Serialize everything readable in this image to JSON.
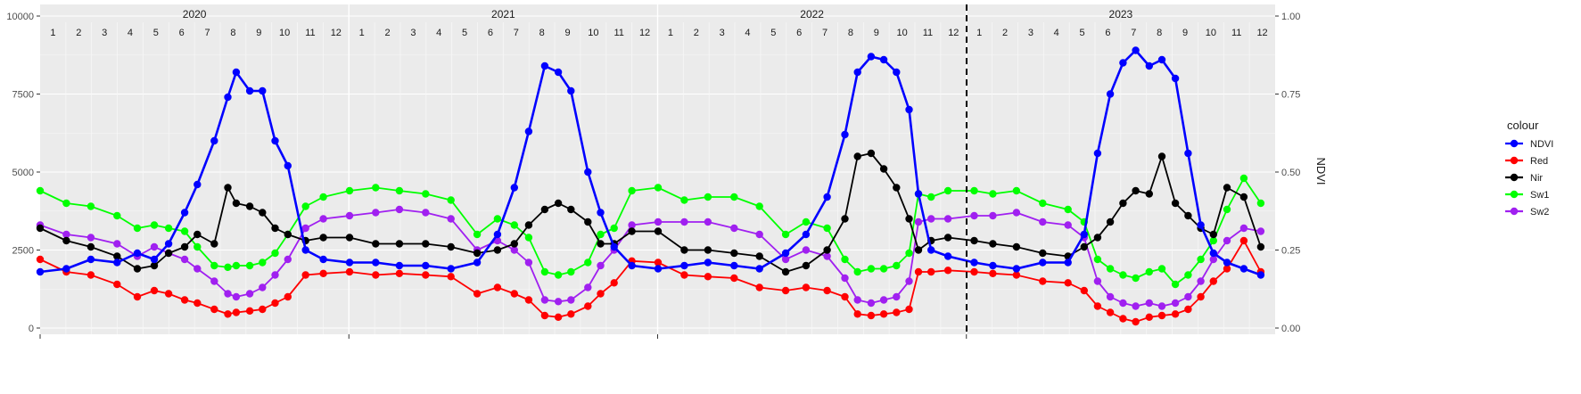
{
  "chart_data": {
    "type": "line",
    "title": "",
    "xlabel": "",
    "ylabel_left": "",
    "ylabel_right": "NDVI",
    "ylim_left": [
      0,
      10000
    ],
    "ylim_right": [
      0,
      1
    ],
    "left_ticks": [
      "0",
      "2500",
      "5000",
      "7500",
      "10000"
    ],
    "right_ticks": [
      "0.00",
      "0.25",
      "0.50",
      "0.75",
      "1.00"
    ],
    "grid": true,
    "years": [
      "2020",
      "2021",
      "2022",
      "2023"
    ],
    "month_labels": [
      "1",
      "2",
      "3",
      "4",
      "5",
      "6",
      "7",
      "8",
      "9",
      "10",
      "11",
      "12"
    ],
    "x_start": "2020-01-01",
    "reference_line_date": "2023-01-01",
    "legend": {
      "title": "colour",
      "position": "right",
      "entries": [
        {
          "label": "NDVI",
          "color": "#0000ff"
        },
        {
          "label": "Red",
          "color": "#ff0000"
        },
        {
          "label": "Nir",
          "color": "#000000"
        },
        {
          "label": "Sw1",
          "color": "#00ff00"
        },
        {
          "label": "Sw2",
          "color": "#a020f0"
        }
      ]
    },
    "series": [
      {
        "name": "NDVI",
        "color": "#0000ff",
        "axis": "right",
        "x": [
          "2020-01-01",
          "2020-02-01",
          "2020-03-01",
          "2020-04-01",
          "2020-04-25",
          "2020-05-15",
          "2020-06-01",
          "2020-06-20",
          "2020-07-05",
          "2020-07-25",
          "2020-08-10",
          "2020-08-20",
          "2020-09-05",
          "2020-09-20",
          "2020-10-05",
          "2020-10-20",
          "2020-11-10",
          "2020-12-01",
          "2021-01-01",
          "2021-02-01",
          "2021-03-01",
          "2021-04-01",
          "2021-05-01",
          "2021-06-01",
          "2021-06-25",
          "2021-07-15",
          "2021-08-01",
          "2021-08-20",
          "2021-09-05",
          "2021-09-20",
          "2021-10-10",
          "2021-10-25",
          "2021-11-10",
          "2021-12-01",
          "2022-01-01",
          "2022-02-01",
          "2022-03-01",
          "2022-04-01",
          "2022-05-01",
          "2022-06-01",
          "2022-06-25",
          "2022-07-20",
          "2022-08-10",
          "2022-08-25",
          "2022-09-10",
          "2022-09-25",
          "2022-10-10",
          "2022-10-25",
          "2022-11-05",
          "2022-11-20",
          "2022-12-10",
          "2023-01-10",
          "2023-02-01",
          "2023-03-01",
          "2023-04-01",
          "2023-05-01",
          "2023-05-20",
          "2023-06-05",
          "2023-06-20",
          "2023-07-05",
          "2023-07-20",
          "2023-08-05",
          "2023-08-20",
          "2023-09-05",
          "2023-09-20",
          "2023-10-05",
          "2023-10-20",
          "2023-11-05",
          "2023-11-25",
          "2023-12-15"
        ],
        "y": [
          0.18,
          0.19,
          0.22,
          0.21,
          0.24,
          0.22,
          0.27,
          0.37,
          0.46,
          0.6,
          0.74,
          0.82,
          0.76,
          0.76,
          0.6,
          0.52,
          0.25,
          0.22,
          0.21,
          0.21,
          0.2,
          0.2,
          0.19,
          0.21,
          0.3,
          0.45,
          0.63,
          0.84,
          0.82,
          0.76,
          0.5,
          0.37,
          0.26,
          0.2,
          0.19,
          0.2,
          0.21,
          0.2,
          0.19,
          0.24,
          0.3,
          0.42,
          0.62,
          0.82,
          0.87,
          0.86,
          0.82,
          0.7,
          0.43,
          0.25,
          0.23,
          0.21,
          0.2,
          0.19,
          0.21,
          0.21,
          0.3,
          0.56,
          0.75,
          0.85,
          0.89,
          0.84,
          0.86,
          0.8,
          0.56,
          0.33,
          0.24,
          0.21,
          0.19,
          0.17
        ]
      },
      {
        "name": "Red",
        "color": "#ff0000",
        "axis": "left",
        "x": [
          "2020-01-01",
          "2020-02-01",
          "2020-03-01",
          "2020-04-01",
          "2020-04-25",
          "2020-05-15",
          "2020-06-01",
          "2020-06-20",
          "2020-07-05",
          "2020-07-25",
          "2020-08-10",
          "2020-08-20",
          "2020-09-05",
          "2020-09-20",
          "2020-10-05",
          "2020-10-20",
          "2020-11-10",
          "2020-12-01",
          "2021-01-01",
          "2021-02-01",
          "2021-03-01",
          "2021-04-01",
          "2021-05-01",
          "2021-06-01",
          "2021-06-25",
          "2021-07-15",
          "2021-08-01",
          "2021-08-20",
          "2021-09-05",
          "2021-09-20",
          "2021-10-10",
          "2021-10-25",
          "2021-11-10",
          "2021-12-01",
          "2022-01-01",
          "2022-02-01",
          "2022-03-01",
          "2022-04-01",
          "2022-05-01",
          "2022-06-01",
          "2022-06-25",
          "2022-07-20",
          "2022-08-10",
          "2022-08-25",
          "2022-09-10",
          "2022-09-25",
          "2022-10-10",
          "2022-10-25",
          "2022-11-05",
          "2022-11-20",
          "2022-12-10",
          "2023-01-10",
          "2023-02-01",
          "2023-03-01",
          "2023-04-01",
          "2023-05-01",
          "2023-05-20",
          "2023-06-05",
          "2023-06-20",
          "2023-07-05",
          "2023-07-20",
          "2023-08-05",
          "2023-08-20",
          "2023-09-05",
          "2023-09-20",
          "2023-10-05",
          "2023-10-20",
          "2023-11-05",
          "2023-11-25",
          "2023-12-15"
        ],
        "y": [
          2200,
          1800,
          1700,
          1400,
          1000,
          1200,
          1100,
          900,
          800,
          600,
          450,
          500,
          550,
          600,
          800,
          1000,
          1700,
          1750,
          1800,
          1700,
          1750,
          1700,
          1650,
          1100,
          1300,
          1100,
          900,
          400,
          350,
          450,
          700,
          1100,
          1450,
          2150,
          2100,
          1700,
          1650,
          1600,
          1300,
          1200,
          1300,
          1200,
          1000,
          450,
          400,
          450,
          500,
          600,
          1800,
          1800,
          1850,
          1800,
          1750,
          1700,
          1500,
          1450,
          1200,
          700,
          500,
          300,
          200,
          350,
          400,
          450,
          600,
          1000,
          1500,
          1900,
          2800,
          1800
        ]
      },
      {
        "name": "Nir",
        "color": "#000000",
        "axis": "left",
        "x": [
          "2020-01-01",
          "2020-02-01",
          "2020-03-01",
          "2020-04-01",
          "2020-04-25",
          "2020-05-15",
          "2020-06-01",
          "2020-06-20",
          "2020-07-05",
          "2020-07-25",
          "2020-08-10",
          "2020-08-20",
          "2020-09-05",
          "2020-09-20",
          "2020-10-05",
          "2020-10-20",
          "2020-11-10",
          "2020-12-01",
          "2021-01-01",
          "2021-02-01",
          "2021-03-01",
          "2021-04-01",
          "2021-05-01",
          "2021-06-01",
          "2021-06-25",
          "2021-07-15",
          "2021-08-01",
          "2021-08-20",
          "2021-09-05",
          "2021-09-20",
          "2021-10-10",
          "2021-10-25",
          "2021-11-10",
          "2021-12-01",
          "2022-01-01",
          "2022-02-01",
          "2022-03-01",
          "2022-04-01",
          "2022-05-01",
          "2022-06-01",
          "2022-06-25",
          "2022-07-20",
          "2022-08-10",
          "2022-08-25",
          "2022-09-10",
          "2022-09-25",
          "2022-10-10",
          "2022-10-25",
          "2022-11-05",
          "2022-11-20",
          "2022-12-10",
          "2023-01-10",
          "2023-02-01",
          "2023-03-01",
          "2023-04-01",
          "2023-05-01",
          "2023-05-20",
          "2023-06-05",
          "2023-06-20",
          "2023-07-05",
          "2023-07-20",
          "2023-08-05",
          "2023-08-20",
          "2023-09-05",
          "2023-09-20",
          "2023-10-05",
          "2023-10-20",
          "2023-11-05",
          "2023-11-25",
          "2023-12-15"
        ],
        "y": [
          3200,
          2800,
          2600,
          2300,
          1900,
          2000,
          2400,
          2600,
          3000,
          2700,
          4500,
          4000,
          3900,
          3700,
          3200,
          3000,
          2800,
          2900,
          2900,
          2700,
          2700,
          2700,
          2600,
          2400,
          2500,
          2700,
          3300,
          3800,
          4000,
          3800,
          3400,
          2700,
          2700,
          3100,
          3100,
          2500,
          2500,
          2400,
          2300,
          1800,
          2000,
          2500,
          3500,
          5500,
          5600,
          5100,
          4500,
          3500,
          2500,
          2800,
          2900,
          2800,
          2700,
          2600,
          2400,
          2300,
          2600,
          2900,
          3400,
          4000,
          4400,
          4300,
          5500,
          4000,
          3600,
          3200,
          3000,
          4500,
          4200,
          2600
        ]
      },
      {
        "name": "Sw1",
        "color": "#00ff00",
        "axis": "left",
        "x": [
          "2020-01-01",
          "2020-02-01",
          "2020-03-01",
          "2020-04-01",
          "2020-04-25",
          "2020-05-15",
          "2020-06-01",
          "2020-06-20",
          "2020-07-05",
          "2020-07-25",
          "2020-08-10",
          "2020-08-20",
          "2020-09-05",
          "2020-09-20",
          "2020-10-05",
          "2020-10-20",
          "2020-11-10",
          "2020-12-01",
          "2021-01-01",
          "2021-02-01",
          "2021-03-01",
          "2021-04-01",
          "2021-05-01",
          "2021-06-01",
          "2021-06-25",
          "2021-07-15",
          "2021-08-01",
          "2021-08-20",
          "2021-09-05",
          "2021-09-20",
          "2021-10-10",
          "2021-10-25",
          "2021-11-10",
          "2021-12-01",
          "2022-01-01",
          "2022-02-01",
          "2022-03-01",
          "2022-04-01",
          "2022-05-01",
          "2022-06-01",
          "2022-06-25",
          "2022-07-20",
          "2022-08-10",
          "2022-08-25",
          "2022-09-10",
          "2022-09-25",
          "2022-10-10",
          "2022-10-25",
          "2022-11-05",
          "2022-11-20",
          "2022-12-10",
          "2023-01-10",
          "2023-02-01",
          "2023-03-01",
          "2023-04-01",
          "2023-05-01",
          "2023-05-20",
          "2023-06-05",
          "2023-06-20",
          "2023-07-05",
          "2023-07-20",
          "2023-08-05",
          "2023-08-20",
          "2023-09-05",
          "2023-09-20",
          "2023-10-05",
          "2023-10-20",
          "2023-11-05",
          "2023-11-25",
          "2023-12-15"
        ],
        "y": [
          4400,
          4000,
          3900,
          3600,
          3200,
          3300,
          3200,
          3100,
          2600,
          2000,
          1950,
          2000,
          2000,
          2100,
          2400,
          3000,
          3900,
          4200,
          4400,
          4500,
          4400,
          4300,
          4100,
          3000,
          3500,
          3300,
          2900,
          1800,
          1700,
          1800,
          2100,
          3000,
          3200,
          4400,
          4500,
          4100,
          4200,
          4200,
          3900,
          3000,
          3400,
          3200,
          2200,
          1800,
          1900,
          1900,
          2000,
          2400,
          4300,
          4200,
          4400,
          4400,
          4300,
          4400,
          4000,
          3800,
          3400,
          2200,
          1900,
          1700,
          1600,
          1800,
          1900,
          1400,
          1700,
          2200,
          2800,
          3800,
          4800,
          4000
        ]
      },
      {
        "name": "Sw2",
        "color": "#a020f0",
        "axis": "left",
        "x": [
          "2020-01-01",
          "2020-02-01",
          "2020-03-01",
          "2020-04-01",
          "2020-04-25",
          "2020-05-15",
          "2020-06-01",
          "2020-06-20",
          "2020-07-05",
          "2020-07-25",
          "2020-08-10",
          "2020-08-20",
          "2020-09-05",
          "2020-09-20",
          "2020-10-05",
          "2020-10-20",
          "2020-11-10",
          "2020-12-01",
          "2021-01-01",
          "2021-02-01",
          "2021-03-01",
          "2021-04-01",
          "2021-05-01",
          "2021-06-01",
          "2021-06-25",
          "2021-07-15",
          "2021-08-01",
          "2021-08-20",
          "2021-09-05",
          "2021-09-20",
          "2021-10-10",
          "2021-10-25",
          "2021-11-10",
          "2021-12-01",
          "2022-01-01",
          "2022-02-01",
          "2022-03-01",
          "2022-04-01",
          "2022-05-01",
          "2022-06-01",
          "2022-06-25",
          "2022-07-20",
          "2022-08-10",
          "2022-08-25",
          "2022-09-10",
          "2022-09-25",
          "2022-10-10",
          "2022-10-25",
          "2022-11-05",
          "2022-11-20",
          "2022-12-10",
          "2023-01-10",
          "2023-02-01",
          "2023-03-01",
          "2023-04-01",
          "2023-05-01",
          "2023-05-20",
          "2023-06-05",
          "2023-06-20",
          "2023-07-05",
          "2023-07-20",
          "2023-08-05",
          "2023-08-20",
          "2023-09-05",
          "2023-09-20",
          "2023-10-05",
          "2023-10-20",
          "2023-11-05",
          "2023-11-25",
          "2023-12-15"
        ],
        "y": [
          3300,
          3000,
          2900,
          2700,
          2300,
          2600,
          2400,
          2200,
          1900,
          1500,
          1100,
          1000,
          1100,
          1300,
          1700,
          2200,
          3200,
          3500,
          3600,
          3700,
          3800,
          3700,
          3500,
          2500,
          2800,
          2500,
          2100,
          900,
          850,
          900,
          1300,
          2000,
          2500,
          3300,
          3400,
          3400,
          3400,
          3200,
          3000,
          2200,
          2500,
          2300,
          1600,
          900,
          800,
          900,
          1000,
          1500,
          3400,
          3500,
          3500,
          3600,
          3600,
          3700,
          3400,
          3300,
          2900,
          1500,
          1000,
          800,
          700,
          800,
          700,
          800,
          1000,
          1500,
          2200,
          2800,
          3200,
          3100
        ]
      }
    ]
  }
}
